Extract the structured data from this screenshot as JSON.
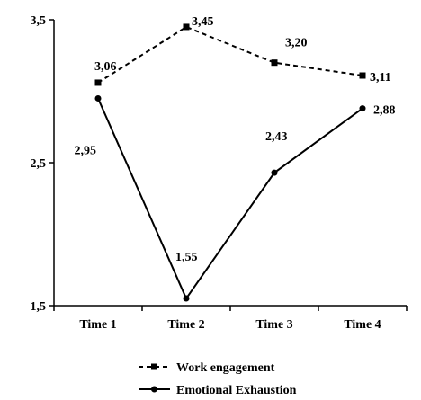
{
  "chart_data": {
    "type": "line",
    "categories": [
      "Time 1",
      "Time 2",
      "Time 3",
      "Time 4"
    ],
    "yticks": [
      "3,5",
      "2,5",
      "1,5"
    ],
    "ylim": [
      1.5,
      3.5
    ],
    "grid": false,
    "legend_position": "bottom-center",
    "series": [
      {
        "name": "Work engagement",
        "values": [
          3.06,
          3.45,
          3.2,
          3.11
        ],
        "labels": [
          "3,06",
          "3,45",
          "3,20",
          "3,11"
        ],
        "line_style": "dashed",
        "marker": "square",
        "color": "#000000"
      },
      {
        "name": "Emotional Exhaustion",
        "values": [
          2.95,
          1.55,
          2.43,
          2.88
        ],
        "labels": [
          "2,95",
          "1,55",
          "2,43",
          "2,88"
        ],
        "line_style": "solid",
        "marker": "circle",
        "color": "#000000"
      }
    ]
  }
}
